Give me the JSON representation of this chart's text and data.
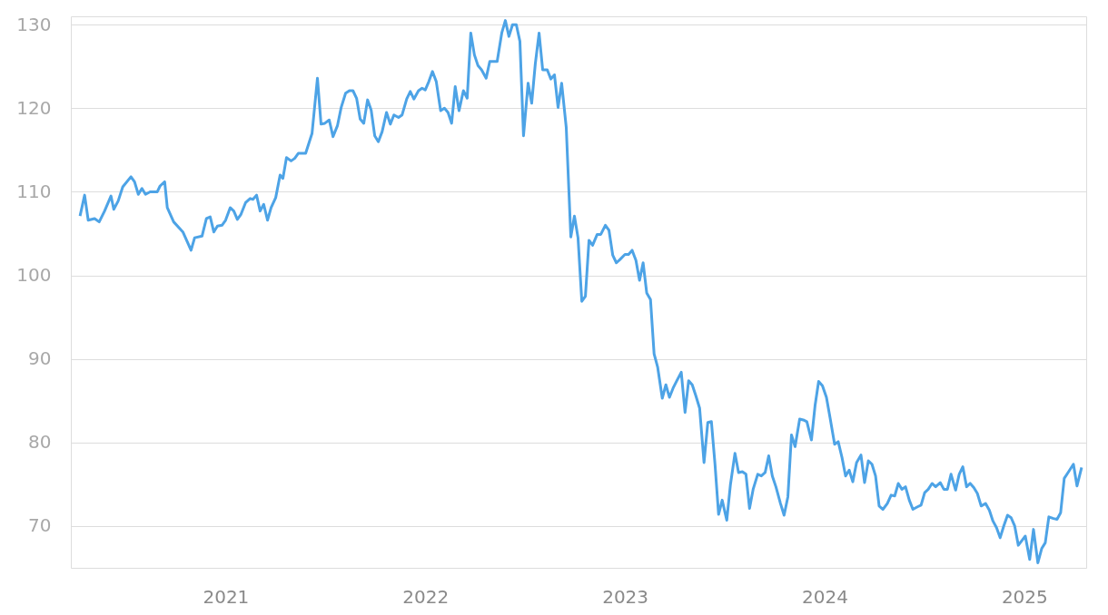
{
  "chart_data": {
    "type": "line",
    "x": [
      2020.271,
      2020.294,
      2020.312,
      2020.344,
      2020.367,
      2020.394,
      2020.426,
      2020.44,
      2020.462,
      2020.485,
      2020.526,
      2020.544,
      2020.563,
      2020.581,
      2020.599,
      2020.622,
      2020.658,
      2020.672,
      2020.695,
      2020.708,
      2020.74,
      2020.786,
      2020.827,
      2020.845,
      2020.882,
      2020.904,
      2020.923,
      2020.941,
      2020.959,
      2020.982,
      2021.0,
      2021.023,
      2021.041,
      2021.059,
      2021.077,
      2021.1,
      2021.123,
      2021.137,
      2021.155,
      2021.173,
      2021.191,
      2021.21,
      2021.228,
      2021.251,
      2021.273,
      2021.287,
      2021.305,
      2021.328,
      2021.346,
      2021.364,
      2021.401,
      2021.433,
      2021.46,
      2021.478,
      2021.497,
      2021.519,
      2021.538,
      2021.56,
      2021.579,
      2021.601,
      2021.62,
      2021.638,
      2021.656,
      2021.674,
      2021.692,
      2021.711,
      2021.729,
      2021.747,
      2021.765,
      2021.784,
      2021.806,
      2021.825,
      2021.843,
      2021.866,
      2021.884,
      2021.907,
      2021.925,
      2021.943,
      2021.966,
      2021.984,
      2022.0,
      2022.018,
      2022.036,
      2022.055,
      2022.077,
      2022.096,
      2022.114,
      2022.132,
      2022.15,
      2022.169,
      2022.191,
      2022.21,
      2022.228,
      2022.246,
      2022.264,
      2022.282,
      2022.305,
      2022.323,
      2022.36,
      2022.383,
      2022.401,
      2022.419,
      2022.437,
      2022.456,
      2022.474,
      2022.492,
      2022.515,
      2022.533,
      2022.551,
      2022.57,
      2022.588,
      2022.611,
      2022.629,
      2022.647,
      2022.665,
      2022.683,
      2022.706,
      2022.729,
      2022.747,
      2022.765,
      2022.784,
      2022.802,
      2022.82,
      2022.838,
      2022.861,
      2022.879,
      2022.902,
      2022.92,
      2022.939,
      2022.957,
      2022.975,
      2023.0,
      2023.018,
      2023.036,
      2023.055,
      2023.073,
      2023.091,
      2023.109,
      2023.128,
      2023.146,
      2023.164,
      2023.187,
      2023.205,
      2023.223,
      2023.241,
      2023.26,
      2023.282,
      2023.301,
      2023.319,
      2023.337,
      2023.355,
      2023.374,
      2023.396,
      2023.415,
      2023.433,
      2023.451,
      2023.469,
      2023.487,
      2023.51,
      2023.528,
      2023.551,
      2023.569,
      2023.588,
      2023.606,
      2023.624,
      2023.642,
      2023.665,
      2023.683,
      2023.702,
      2023.72,
      2023.738,
      2023.756,
      2023.779,
      2023.797,
      2023.816,
      2023.834,
      2023.852,
      2023.875,
      2023.893,
      2023.911,
      2023.934,
      2023.952,
      2023.97,
      2023.989,
      2024.009,
      2024.027,
      2024.05,
      2024.068,
      2024.087,
      2024.105,
      2024.123,
      2024.141,
      2024.16,
      2024.182,
      2024.2,
      2024.219,
      2024.237,
      2024.255,
      2024.273,
      2024.292,
      2024.314,
      2024.333,
      2024.351,
      2024.369,
      2024.387,
      2024.405,
      2024.424,
      2024.442,
      2024.465,
      2024.483,
      2024.501,
      2024.519,
      2024.538,
      2024.556,
      2024.579,
      2024.597,
      2024.615,
      2024.633,
      2024.656,
      2024.674,
      2024.692,
      2024.711,
      2024.729,
      2024.747,
      2024.765,
      2024.784,
      2024.806,
      2024.825,
      2024.843,
      2024.861,
      2024.879,
      2024.897,
      2024.916,
      2024.934,
      2024.952,
      2024.97,
      2024.989,
      2025.005,
      2025.027,
      2025.046,
      2025.068,
      2025.087,
      2025.105,
      2025.123,
      2025.146,
      2025.164,
      2025.182,
      2025.2,
      2025.219,
      2025.246,
      2025.264,
      2025.287
    ],
    "series": [
      {
        "color": "#4da3e6",
        "values": [
          107.1,
          109.6,
          106.6,
          106.8,
          106.4,
          107.7,
          109.5,
          107.9,
          108.9,
          110.6,
          111.8,
          111.2,
          109.7,
          110.4,
          109.7,
          110.0,
          110.0,
          110.7,
          111.2,
          108.1,
          106.4,
          105.2,
          103.0,
          104.5,
          104.7,
          106.8,
          107.0,
          105.2,
          105.9,
          106.0,
          106.6,
          108.1,
          107.7,
          106.7,
          107.3,
          108.7,
          109.2,
          109.1,
          109.6,
          107.7,
          108.5,
          106.6,
          108.1,
          109.3,
          112.0,
          111.6,
          114.1,
          113.7,
          114.0,
          114.6,
          114.6,
          117.0,
          123.6,
          118.1,
          118.2,
          118.6,
          116.6,
          117.9,
          120.1,
          121.8,
          122.1,
          122.1,
          121.2,
          118.7,
          118.2,
          121.0,
          119.8,
          116.7,
          116.0,
          117.2,
          119.5,
          118.1,
          119.2,
          118.9,
          119.2,
          121.1,
          122.0,
          121.1,
          122.1,
          122.4,
          122.2,
          123.2,
          124.4,
          123.2,
          119.7,
          120.0,
          119.5,
          118.2,
          122.6,
          119.7,
          122.1,
          121.2,
          129.0,
          126.4,
          125.1,
          124.6,
          123.6,
          125.6,
          125.6,
          129.0,
          130.5,
          128.6,
          130.0,
          130.0,
          128.0,
          116.7,
          123.0,
          120.6,
          125.3,
          129.0,
          124.6,
          124.6,
          123.5,
          124.0,
          120.1,
          123.0,
          117.7,
          104.6,
          107.1,
          104.5,
          96.9,
          97.5,
          104.2,
          103.6,
          104.9,
          104.9,
          106.0,
          105.4,
          102.4,
          101.5,
          101.9,
          102.5,
          102.5,
          103.0,
          101.8,
          99.4,
          101.5,
          97.9,
          97.1,
          90.6,
          89.0,
          85.3,
          86.9,
          85.4,
          86.5,
          87.4,
          88.4,
          83.6,
          87.4,
          86.9,
          85.6,
          84.1,
          77.6,
          82.4,
          82.5,
          77.4,
          71.4,
          73.1,
          70.7,
          74.9,
          78.7,
          76.4,
          76.5,
          76.2,
          72.1,
          74.4,
          76.2,
          76.0,
          76.4,
          78.4,
          76.0,
          74.7,
          72.7,
          71.3,
          73.5,
          80.9,
          79.5,
          82.8,
          82.7,
          82.5,
          80.3,
          84.4,
          87.3,
          86.8,
          85.4,
          83.0,
          79.8,
          80.1,
          78.2,
          76.0,
          76.7,
          75.3,
          77.6,
          78.5,
          75.2,
          77.8,
          77.4,
          76.0,
          72.4,
          72.0,
          72.7,
          73.7,
          73.6,
          75.1,
          74.4,
          74.7,
          73.1,
          72.0,
          72.3,
          72.5,
          74.0,
          74.4,
          75.1,
          74.7,
          75.2,
          74.4,
          74.4,
          76.2,
          74.3,
          76.2,
          77.1,
          74.7,
          75.1,
          74.6,
          73.9,
          72.4,
          72.7,
          71.9,
          70.6,
          69.8,
          68.6,
          70.0,
          71.3,
          71.0,
          70.0,
          67.7,
          68.3,
          68.8,
          66.0,
          69.6,
          65.6,
          67.3,
          68.0,
          71.1,
          70.9,
          70.8,
          71.6,
          75.7,
          76.4,
          77.4,
          74.8,
          77.0
        ]
      }
    ],
    "xlim": [
      2020.225,
      2025.31
    ],
    "xticks": [
      2021,
      2022,
      2023,
      2024,
      2025
    ],
    "ylim": [
      65,
      131
    ],
    "yticks": [
      70,
      80,
      90,
      100,
      110,
      120,
      130
    ],
    "grid": "y",
    "line_style": "solid",
    "marker": "none"
  }
}
